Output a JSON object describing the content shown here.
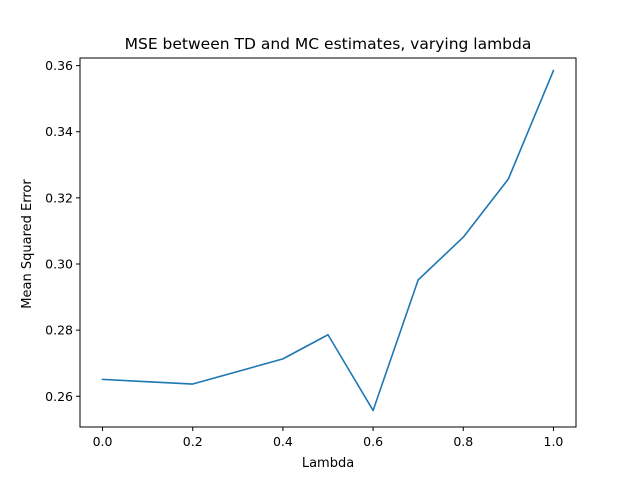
{
  "chart_data": {
    "type": "line",
    "title": "MSE between TD and MC estimates, varying lambda",
    "xlabel": "Lambda",
    "ylabel": "Mean Squared Error",
    "xlim": [
      -0.05,
      1.05
    ],
    "ylim": [
      0.2507,
      0.3623
    ],
    "xticks": [
      0.0,
      0.2,
      0.4,
      0.6,
      0.8,
      1.0
    ],
    "xtick_labels": [
      "0.0",
      "0.2",
      "0.4",
      "0.6",
      "0.8",
      "1.0"
    ],
    "yticks": [
      0.26,
      0.28,
      0.3,
      0.32,
      0.34,
      0.36
    ],
    "ytick_labels": [
      "0.26",
      "0.28",
      "0.30",
      "0.32",
      "0.34",
      "0.36"
    ],
    "grid": false,
    "series": [
      {
        "color": "#1f77b4",
        "x": [
          0.0,
          0.2,
          0.4,
          0.5,
          0.6,
          0.7,
          0.8,
          0.9,
          1.0
        ],
        "y": [
          0.2651,
          0.2637,
          0.2713,
          0.2786,
          0.2557,
          0.2952,
          0.3081,
          0.3257,
          0.3585
        ]
      }
    ]
  }
}
